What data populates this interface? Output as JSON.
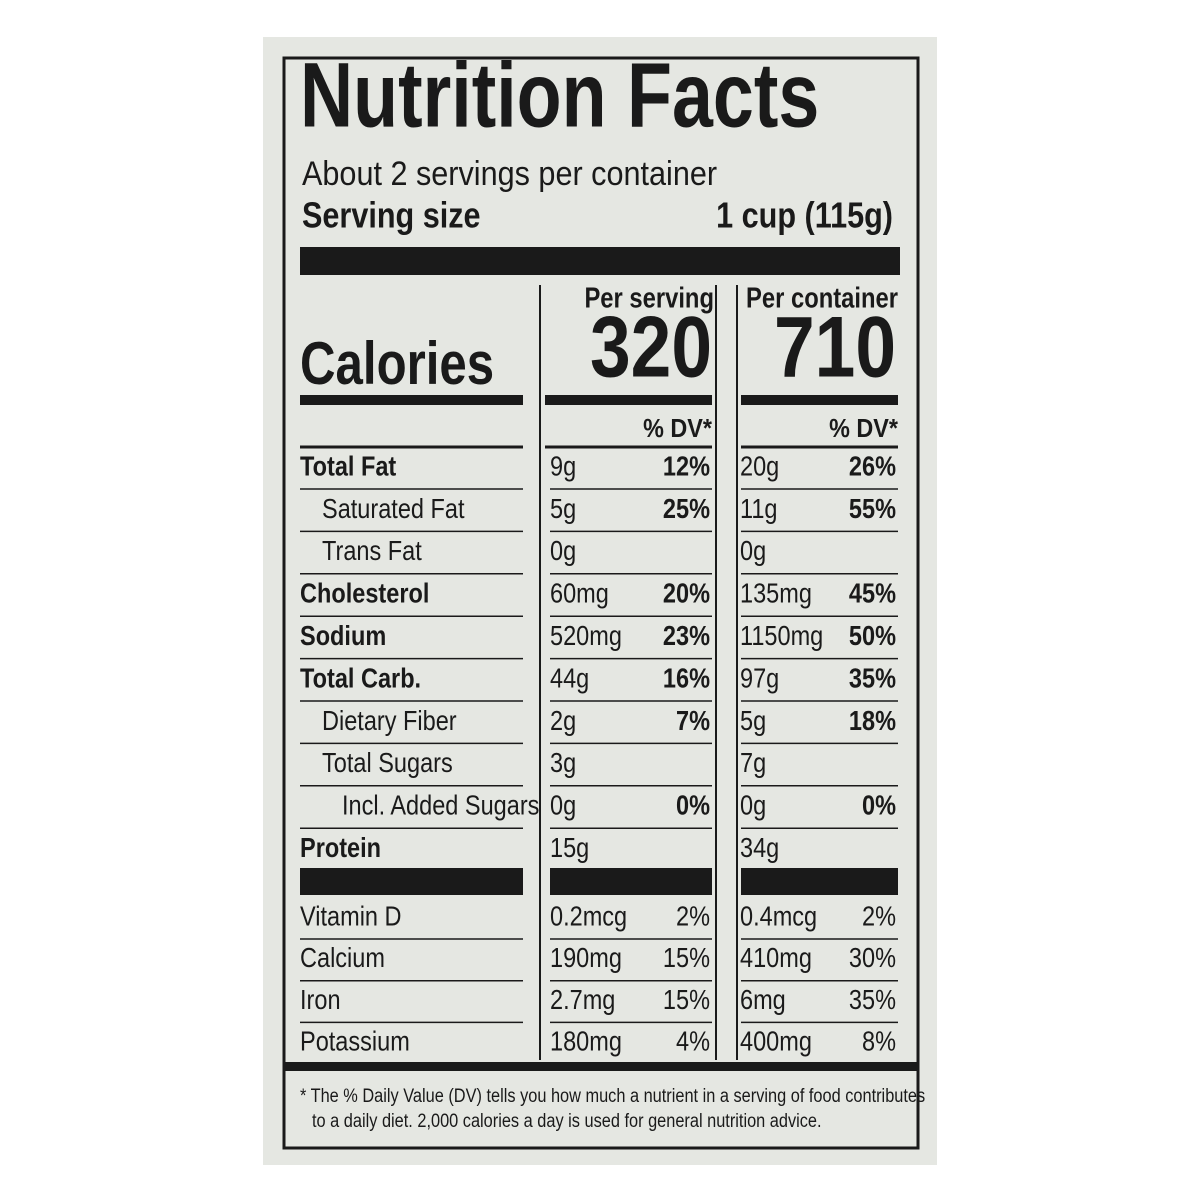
{
  "label": {
    "title": "Nutrition Facts",
    "servings": "About 2 servings per container",
    "serving_size": {
      "label": "Serving size",
      "value": "1 cup (115g)"
    },
    "columns": [
      "Per serving",
      "Per container"
    ],
    "calories": {
      "label": "Calories",
      "values": [
        "320",
        "710"
      ]
    },
    "dv_header": "% DV*",
    "rows": [
      [
        "Total Fat",
        "9g",
        "12%",
        "20g",
        "26%"
      ],
      [
        "Saturated Fat",
        "5g",
        "25%",
        "11g",
        "55%"
      ],
      [
        "Trans Fat",
        "0g",
        null,
        "0g",
        null
      ],
      [
        "Cholesterol",
        "60mg",
        "20%",
        "135mg",
        "45%"
      ],
      [
        "Sodium",
        "520mg",
        "23%",
        "1150mg",
        "50%"
      ],
      [
        "Total Carb.",
        "44g",
        "16%",
        "97g",
        "35%"
      ],
      [
        "Dietary Fiber",
        "2g",
        "7%",
        "5g",
        "18%"
      ],
      [
        "Total Sugars",
        "3g",
        null,
        "7g",
        null
      ],
      [
        "Incl. Added Sugars",
        "0g",
        "0%",
        "0g",
        "0%"
      ],
      [
        "Protein",
        "15g",
        null,
        "34g",
        null
      ]
    ],
    "vitamins": [
      [
        "Vitamin D",
        "0.2mcg",
        "2%",
        "0.4mcg",
        "2%"
      ],
      [
        "Calcium",
        "190mg",
        "15%",
        "410mg",
        "30%"
      ],
      [
        "Iron",
        "2.7mg",
        "15%",
        "6mg",
        "35%"
      ],
      [
        "Potassium",
        "180mg",
        "4%",
        "400mg",
        "8%"
      ]
    ],
    "footnote": [
      "* The % Daily Value (DV) tells you how much a nutrient in a serving of food contributes",
      "to a daily diet. 2,000 calories a day is used for general nutrition advice."
    ]
  }
}
